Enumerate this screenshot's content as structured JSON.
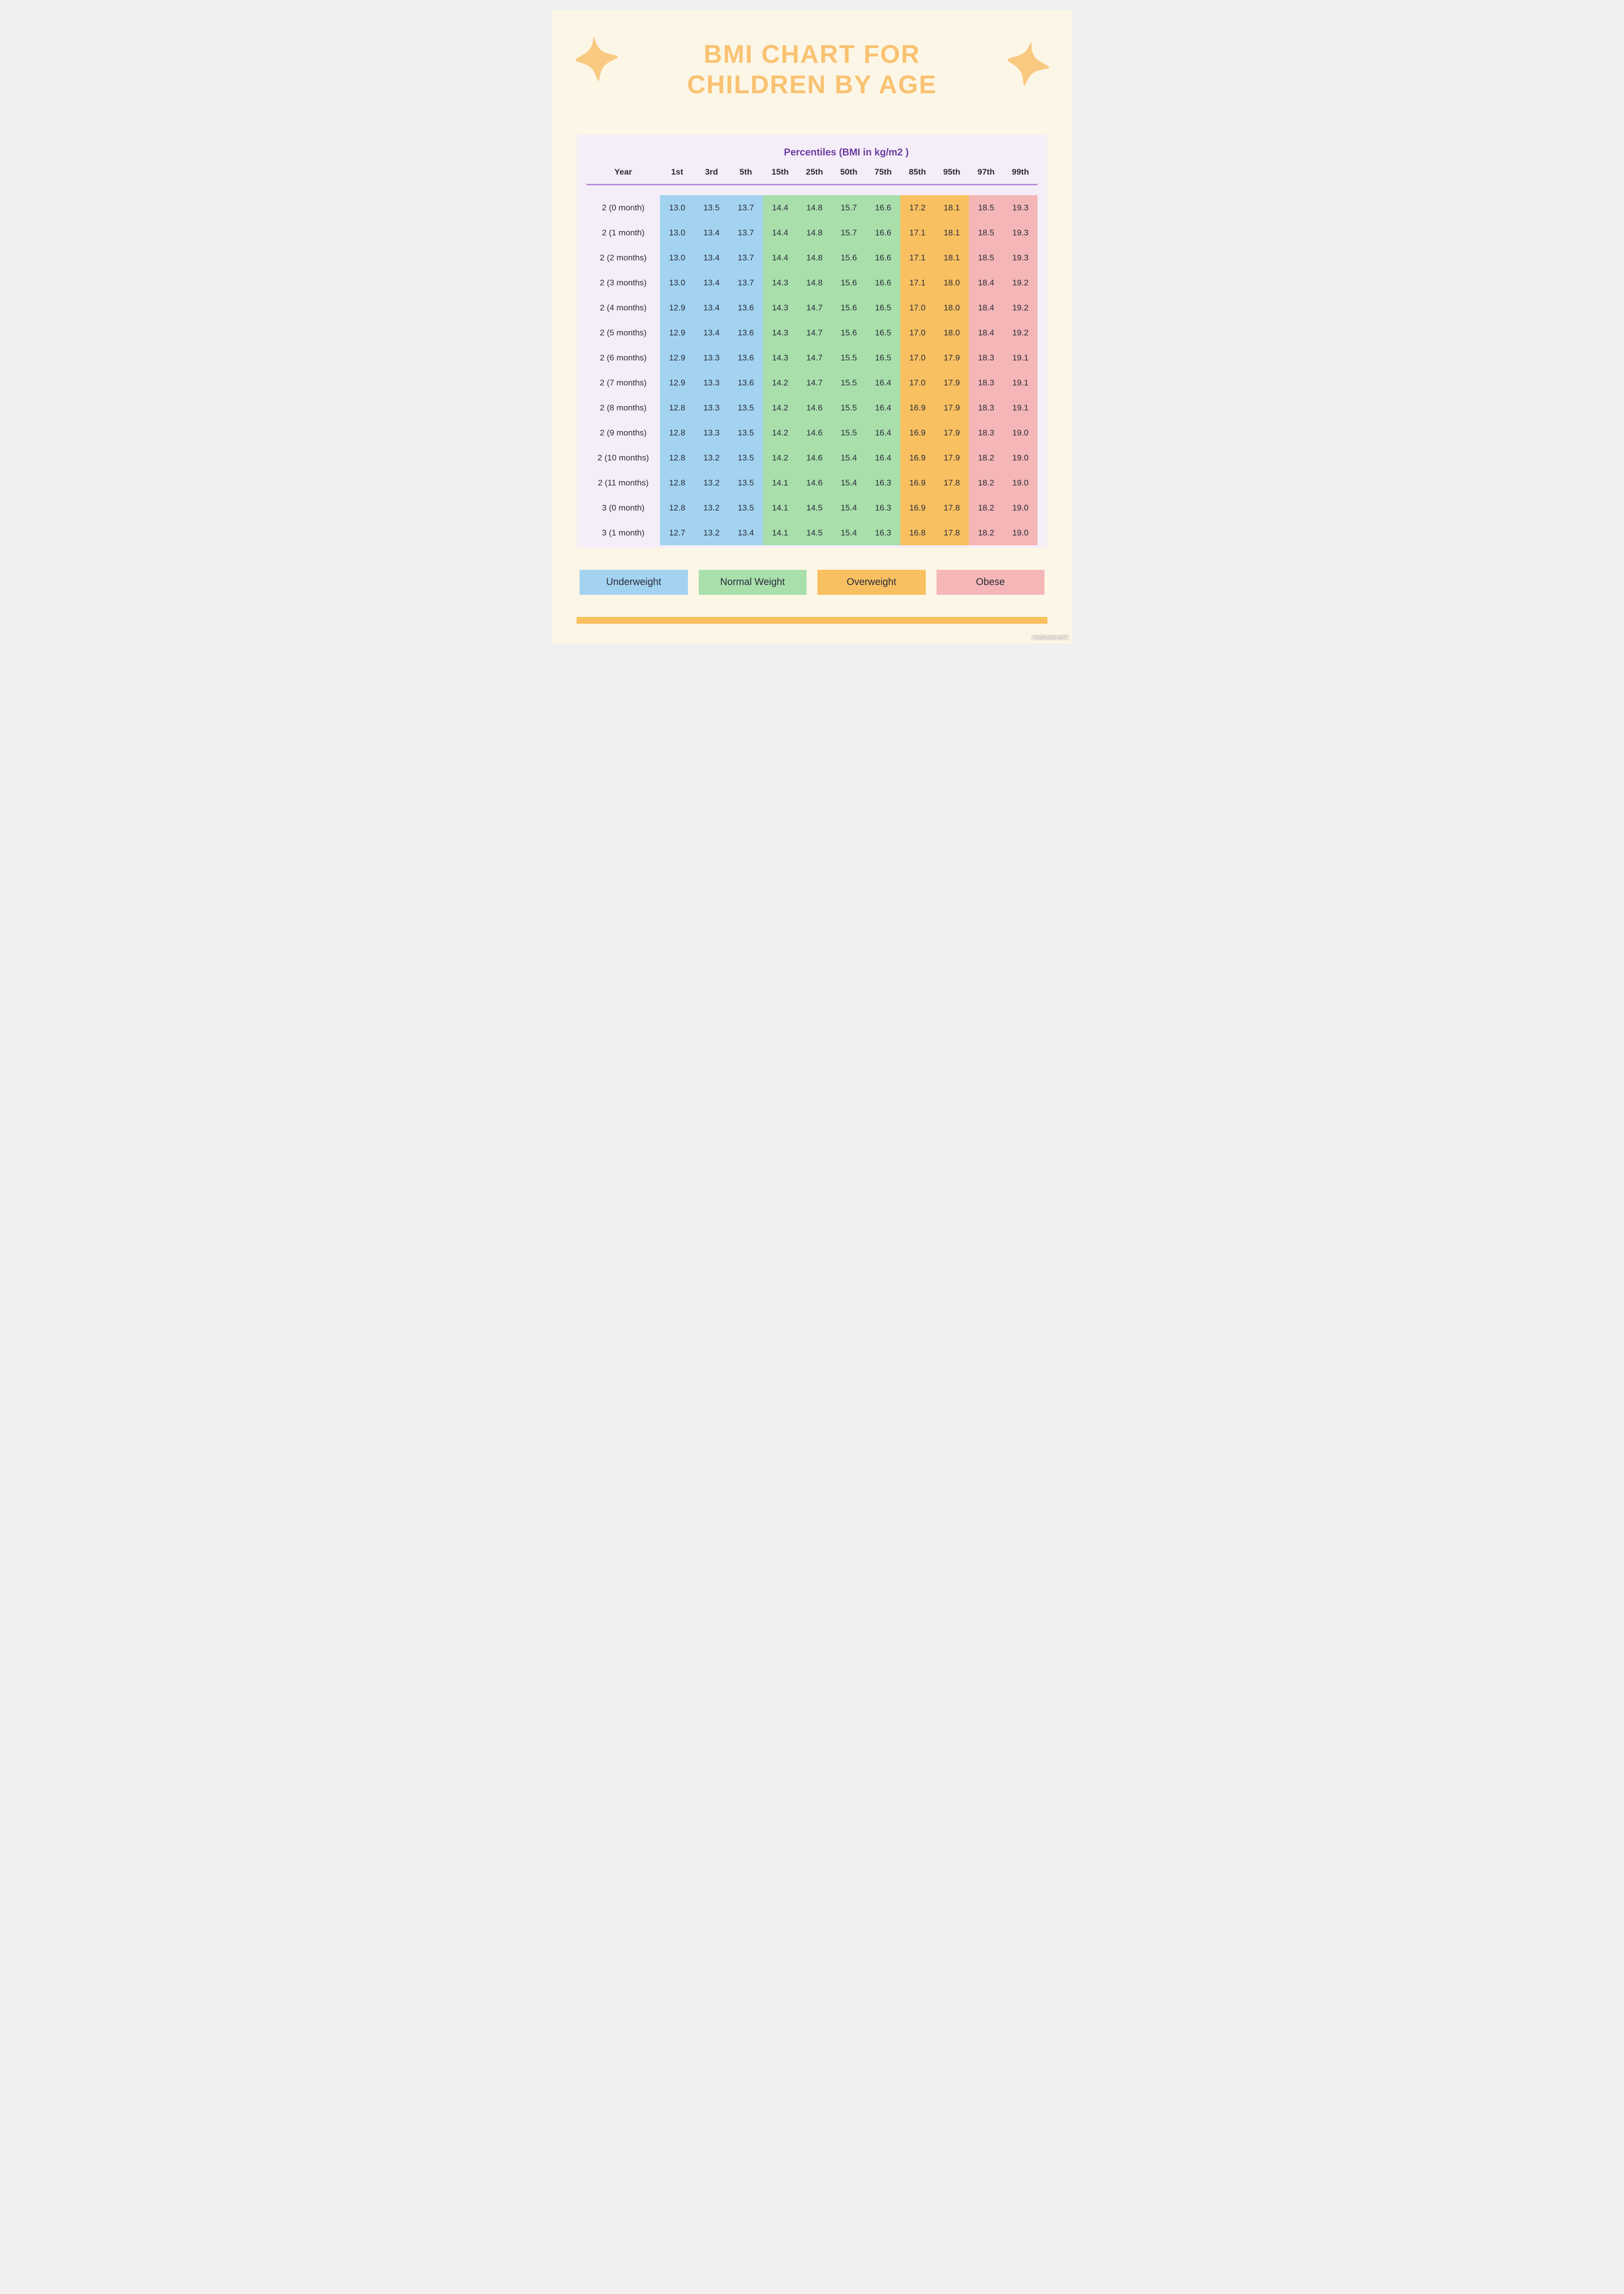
{
  "colors": {
    "page_bg": "#fcf6e6",
    "title": "#f9c272",
    "star": "#f9c981",
    "table_bg": "#f5eef8",
    "perc_header": "#6c3ba0",
    "divider": "#b98bd6",
    "underweight": "#a3d3f0",
    "normal": "#a8dfab",
    "overweight": "#f8c060",
    "obese": "#f4b6b6",
    "footer_bar": "#f8c060"
  },
  "title_line1": "BMI CHART FOR",
  "title_line2": "CHILDREN BY AGE",
  "percentiles_header": "Percentiles (BMI in kg/m2 )",
  "year_header": "Year",
  "percentile_labels": [
    "1st",
    "3rd",
    "5th",
    "15th",
    "25th",
    "50th",
    "75th",
    "85th",
    "95th",
    "97th",
    "99th"
  ],
  "category_for_col": [
    "under",
    "under",
    "under",
    "normal",
    "normal",
    "normal",
    "normal",
    "over",
    "over",
    "obese",
    "obese"
  ],
  "rows": [
    {
      "year": "2 (0 month)",
      "v": [
        "13.0",
        "13.5",
        "13.7",
        "14.4",
        "14.8",
        "15.7",
        "16.6",
        "17.2",
        "18.1",
        "18.5",
        "19.3"
      ]
    },
    {
      "year": "2 (1 month)",
      "v": [
        "13.0",
        "13.4",
        "13.7",
        "14.4",
        "14.8",
        "15.7",
        "16.6",
        "17.1",
        "18.1",
        "18.5",
        "19.3"
      ]
    },
    {
      "year": "2 (2 months)",
      "v": [
        "13.0",
        "13.4",
        "13.7",
        "14.4",
        "14.8",
        "15.6",
        "16.6",
        "17.1",
        "18.1",
        "18.5",
        "19.3"
      ]
    },
    {
      "year": "2 (3 months)",
      "v": [
        "13.0",
        "13.4",
        "13.7",
        "14.3",
        "14.8",
        "15.6",
        "16.6",
        "17.1",
        "18.0",
        "18.4",
        "19.2"
      ]
    },
    {
      "year": "2 (4 months)",
      "v": [
        "12.9",
        "13.4",
        "13.6",
        "14.3",
        "14.7",
        "15.6",
        "16.5",
        "17.0",
        "18.0",
        "18.4",
        "19.2"
      ]
    },
    {
      "year": "2 (5 months)",
      "v": [
        "12.9",
        "13.4",
        "13.6",
        "14.3",
        "14.7",
        "15.6",
        "16.5",
        "17.0",
        "18.0",
        "18.4",
        "19.2"
      ]
    },
    {
      "year": "2 (6 months)",
      "v": [
        "12.9",
        "13.3",
        "13.6",
        "14.3",
        "14.7",
        "15.5",
        "16.5",
        "17.0",
        "17.9",
        "18.3",
        "19.1"
      ]
    },
    {
      "year": "2 (7 months)",
      "v": [
        "12.9",
        "13.3",
        "13.6",
        "14.2",
        "14.7",
        "15.5",
        "16.4",
        "17.0",
        "17.9",
        "18.3",
        "19.1"
      ]
    },
    {
      "year": "2 (8 months)",
      "v": [
        "12.8",
        "13.3",
        "13.5",
        "14.2",
        "14.6",
        "15.5",
        "16.4",
        "16.9",
        "17.9",
        "18.3",
        "19.1"
      ]
    },
    {
      "year": "2 (9 months)",
      "v": [
        "12.8",
        "13.3",
        "13.5",
        "14.2",
        "14.6",
        "15.5",
        "16.4",
        "16.9",
        "17.9",
        "18.3",
        "19.0"
      ]
    },
    {
      "year": "2 (10 months)",
      "v": [
        "12.8",
        "13.2",
        "13.5",
        "14.2",
        "14.6",
        "15.4",
        "16.4",
        "16.9",
        "17.9",
        "18.2",
        "19.0"
      ]
    },
    {
      "year": "2 (11 months)",
      "v": [
        "12.8",
        "13.2",
        "13.5",
        "14.1",
        "14.6",
        "15.4",
        "16.3",
        "16.9",
        "17.8",
        "18.2",
        "19.0"
      ]
    },
    {
      "year": "3 (0 month)",
      "v": [
        "12.8",
        "13.2",
        "13.5",
        "14.1",
        "14.5",
        "15.4",
        "16.3",
        "16.9",
        "17.8",
        "18.2",
        "19.0"
      ]
    },
    {
      "year": "3 (1 month)",
      "v": [
        "12.7",
        "13.2",
        "13.4",
        "14.1",
        "14.5",
        "15.4",
        "16.3",
        "16.8",
        "17.8",
        "18.2",
        "19.0"
      ]
    }
  ],
  "legend": {
    "underweight": "Underweight",
    "normal": "Normal Weight",
    "overweight": "Overweight",
    "obese": "Obese"
  },
  "watermark": "TEMPLATE.NET"
}
